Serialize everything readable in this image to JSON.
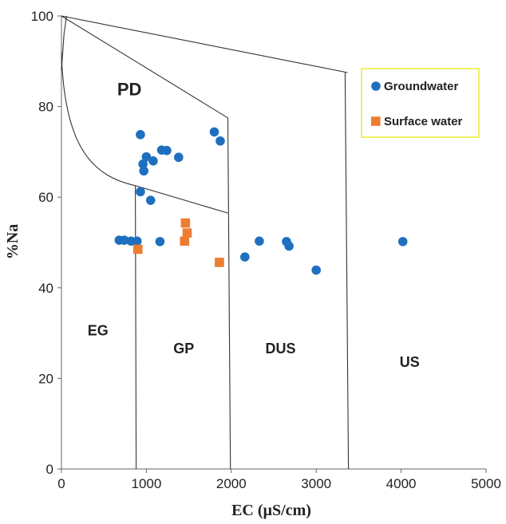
{
  "chart_data": {
    "type": "scatter",
    "xlabel": "EC (µS/cm)",
    "ylabel": "%Na",
    "xlim": [
      0,
      5000
    ],
    "ylim": [
      0,
      100
    ],
    "x_ticks": [
      "0",
      "1000",
      "2000",
      "3000",
      "4000",
      "5000"
    ],
    "y_ticks": [
      "0",
      "20",
      "40",
      "60",
      "80",
      "100"
    ],
    "grid": false,
    "legend_position": "top-right",
    "regions": {
      "pd": "PD",
      "eg": "EG",
      "gp": "GP",
      "dus": "DUS",
      "us": "US"
    },
    "series": [
      {
        "name": "Groundwater",
        "marker": "circle",
        "color": "#1f6fbf",
        "points": [
          [
            680,
            50.5
          ],
          [
            740,
            50.5
          ],
          [
            820,
            50.3
          ],
          [
            890,
            50.3
          ],
          [
            930,
            73.8
          ],
          [
            960,
            67.3
          ],
          [
            970,
            65.8
          ],
          [
            1000,
            68.9
          ],
          [
            1050,
            59.3
          ],
          [
            1080,
            68.0
          ],
          [
            1180,
            70.4
          ],
          [
            1240,
            70.3
          ],
          [
            1380,
            68.8
          ],
          [
            930,
            61.2
          ],
          [
            1160,
            50.2
          ],
          [
            1800,
            74.4
          ],
          [
            1870,
            72.4
          ],
          [
            2160,
            46.8
          ],
          [
            2330,
            50.3
          ],
          [
            2650,
            50.2
          ],
          [
            2680,
            49.2
          ],
          [
            3000,
            43.9
          ],
          [
            4020,
            50.2
          ]
        ]
      },
      {
        "name": "Surface water",
        "marker": "square",
        "color": "#ed7d31",
        "points": [
          [
            900,
            48.5
          ],
          [
            1460,
            54.3
          ],
          [
            1480,
            52.1
          ],
          [
            1450,
            50.3
          ],
          [
            1860,
            45.6
          ]
        ]
      }
    ]
  }
}
